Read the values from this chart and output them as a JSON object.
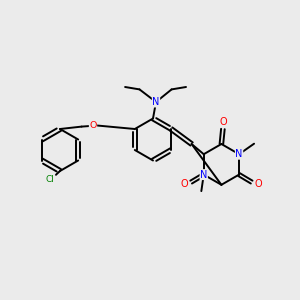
{
  "background_color": "#ebebeb",
  "bond_color": "#000000",
  "bond_width": 1.4,
  "atom_colors": {
    "N": "#0000ff",
    "O": "#ff0000",
    "Cl": "#008000",
    "C": "#000000"
  },
  "figsize": [
    3.0,
    3.0
  ],
  "dpi": 100,
  "font_size": 6.5
}
